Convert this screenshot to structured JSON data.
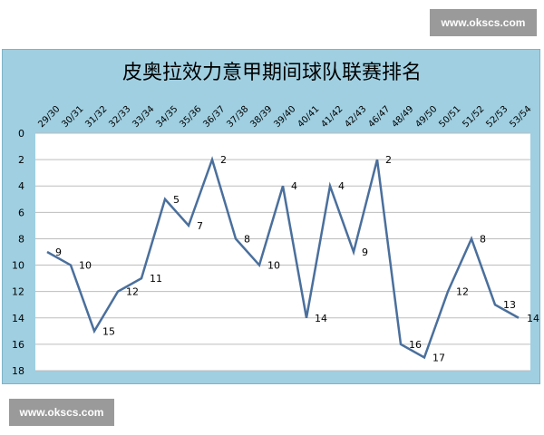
{
  "watermark_top": "www.okscs.com",
  "watermark_bottom": "www.okscs.com",
  "chart_data": {
    "type": "line",
    "title": "皮奥拉效力意甲期间球队联赛排名",
    "categories": [
      "29/30",
      "30/31",
      "31/32",
      "32/33",
      "33/34",
      "34/35",
      "35/36",
      "36/37",
      "37/38",
      "38/39",
      "39/40",
      "40/41",
      "41/42",
      "42/43",
      "46/47",
      "48/49",
      "49/50",
      "50/51",
      "51/52",
      "52/53",
      "53/54"
    ],
    "series": [
      {
        "values": [
          9,
          10,
          15,
          12,
          11,
          5,
          7,
          2,
          8,
          10,
          4,
          14,
          4,
          9,
          2,
          16,
          17,
          12,
          8,
          13,
          14
        ]
      }
    ],
    "ylim": [
      0,
      18
    ],
    "yticks": [
      0,
      2,
      4,
      6,
      8,
      10,
      12,
      14,
      16,
      18
    ],
    "y_inverted": true,
    "line_color": "#4a6f9c",
    "grid": true,
    "data_labels": true,
    "x_tick_position": "top"
  }
}
